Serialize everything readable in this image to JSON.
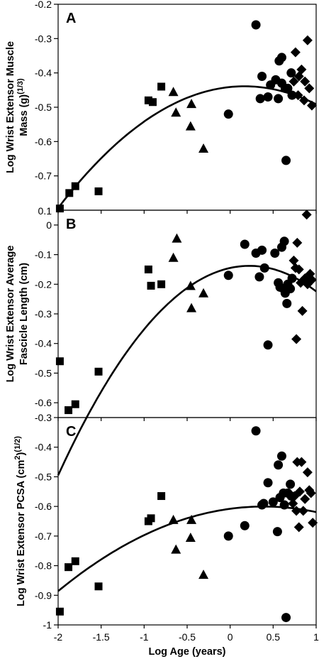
{
  "chart_data": [
    {
      "type": "scatter",
      "panel_label": "A",
      "ylabel_lines": [
        "Log Wrist Extensor Muscle",
        "Mass (g)"
      ],
      "ylabel_sup": "(1/3)",
      "ylim": [
        -0.8,
        -0.2
      ],
      "yticks": [
        -0.2,
        -0.3,
        -0.4,
        -0.5,
        -0.6,
        -0.7
      ],
      "ytick_labels": [
        "-0.2",
        "-0.3",
        "-0.4",
        "-0.5",
        "-0.6",
        "-0.7"
      ],
      "bottom_tick_label": "0.1",
      "xlim": [
        -2,
        1
      ],
      "grid": false,
      "legend": "none",
      "series": [
        {
          "marker": "square",
          "points": [
            [
              -1.98,
              -0.795
            ],
            [
              -1.87,
              -0.75
            ],
            [
              -1.8,
              -0.73
            ],
            [
              -1.53,
              -0.745
            ],
            [
              -0.95,
              -0.48
            ],
            [
              -0.9,
              -0.485
            ],
            [
              -0.8,
              -0.44
            ]
          ]
        },
        {
          "marker": "triangle",
          "points": [
            [
              -0.66,
              -0.455
            ],
            [
              -0.63,
              -0.515
            ],
            [
              -0.46,
              -0.555
            ],
            [
              -0.45,
              -0.49
            ],
            [
              -0.31,
              -0.62
            ]
          ]
        },
        {
          "marker": "circle",
          "points": [
            [
              -0.02,
              -0.52
            ],
            [
              0.3,
              -0.26
            ],
            [
              0.35,
              -0.475
            ],
            [
              0.37,
              -0.41
            ],
            [
              0.44,
              -0.47
            ],
            [
              0.47,
              -0.435
            ],
            [
              0.53,
              -0.42
            ],
            [
              0.56,
              -0.475
            ],
            [
              0.57,
              -0.365
            ],
            [
              0.6,
              -0.355
            ],
            [
              0.6,
              -0.43
            ],
            [
              0.64,
              -0.445
            ],
            [
              0.65,
              -0.655
            ],
            [
              0.67,
              -0.445
            ],
            [
              0.71,
              -0.4
            ],
            [
              0.72,
              -0.465
            ]
          ]
        },
        {
          "marker": "diamond",
          "points": [
            [
              0.74,
              -0.425
            ],
            [
              0.76,
              -0.34
            ],
            [
              0.79,
              -0.465
            ],
            [
              0.8,
              -0.41
            ],
            [
              0.83,
              -0.39
            ],
            [
              0.86,
              -0.48
            ],
            [
              0.87,
              -0.425
            ],
            [
              0.9,
              -0.305
            ],
            [
              0.92,
              -0.445
            ],
            [
              0.95,
              -0.495
            ]
          ]
        }
      ],
      "fit": {
        "type": "quadratic",
        "coef": [
          -0.4411,
          0.0252,
          -0.0755
        ]
      }
    },
    {
      "type": "scatter",
      "panel_label": "B",
      "ylabel_lines": [
        "Log Wrist Extensor Average",
        "Fascicle Length (cm)"
      ],
      "ylabel_sup": "",
      "ylim": [
        -0.65,
        0.05
      ],
      "yticks": [
        0,
        -0.1,
        -0.2,
        -0.3,
        -0.4,
        -0.5,
        -0.6
      ],
      "ytick_labels": [
        "0",
        "-0.1",
        "-0.2",
        "-0.3",
        "-0.4",
        "-0.5",
        "-0.6"
      ],
      "bottom_tick_label": "",
      "xlim": [
        -2,
        1
      ],
      "grid": false,
      "legend": "none",
      "series": [
        {
          "marker": "square",
          "points": [
            [
              -1.98,
              -0.46
            ],
            [
              -1.88,
              -0.625
            ],
            [
              -1.8,
              -0.605
            ],
            [
              -1.53,
              -0.495
            ],
            [
              -0.95,
              -0.15
            ],
            [
              -0.92,
              -0.205
            ],
            [
              -0.8,
              -0.2
            ]
          ]
        },
        {
          "marker": "triangle",
          "points": [
            [
              -0.66,
              -0.11
            ],
            [
              -0.62,
              -0.045
            ],
            [
              -0.46,
              -0.205
            ],
            [
              -0.45,
              -0.28
            ],
            [
              -0.31,
              -0.23
            ]
          ]
        },
        {
          "marker": "circle",
          "points": [
            [
              -0.02,
              -0.17
            ],
            [
              0.17,
              -0.065
            ],
            [
              0.3,
              -0.095
            ],
            [
              0.34,
              -0.175
            ],
            [
              0.37,
              -0.085
            ],
            [
              0.4,
              -0.145
            ],
            [
              0.44,
              -0.405
            ],
            [
              0.52,
              -0.095
            ],
            [
              0.56,
              -0.195
            ],
            [
              0.58,
              -0.21
            ],
            [
              0.6,
              -0.075
            ],
            [
              0.62,
              -0.215
            ],
            [
              0.63,
              -0.055
            ],
            [
              0.64,
              -0.23
            ],
            [
              0.66,
              -0.265
            ],
            [
              0.67,
              -0.2
            ],
            [
              0.7,
              -0.215
            ],
            [
              0.72,
              -0.18
            ]
          ]
        },
        {
          "marker": "diamond",
          "points": [
            [
              0.74,
              -0.12
            ],
            [
              0.76,
              -0.145
            ],
            [
              0.77,
              -0.385
            ],
            [
              0.78,
              -0.06
            ],
            [
              0.8,
              -0.15
            ],
            [
              0.82,
              -0.195
            ],
            [
              0.84,
              -0.29
            ],
            [
              0.87,
              -0.18
            ],
            [
              0.89,
              0.035
            ],
            [
              0.9,
              -0.2
            ],
            [
              0.93,
              -0.165
            ],
            [
              0.95,
              -0.185
            ]
          ]
        }
      ],
      "fit": {
        "type": "quadratic",
        "coef": [
          -0.145,
          0.064,
          -0.143
        ]
      }
    },
    {
      "type": "scatter",
      "panel_label": "C",
      "ylabel_lines": [
        "Log Wrist Extensor PCSA (cm"
      ],
      "ylabel_sup_parts": [
        "2",
        ")",
        "(1/2)"
      ],
      "ylim": [
        -1.0,
        -0.3
      ],
      "yticks": [
        -0.3,
        -0.4,
        -0.5,
        -0.6,
        -0.7,
        -0.8,
        -0.9,
        -1.0
      ],
      "ytick_labels": [
        "-0.3",
        "-0.4",
        "-0.5",
        "-0.6",
        "-0.7",
        "-0.8",
        "-0.9",
        "-1"
      ],
      "bottom_tick_label": "",
      "xlim": [
        -2,
        1
      ],
      "xticks": [
        -2,
        -1.5,
        -1,
        -0.5,
        0,
        0.5,
        1
      ],
      "xtick_labels": [
        "-2",
        "-1.5",
        "-1",
        "-0.5",
        "0",
        "0.5",
        "1"
      ],
      "xlabel": "Log Age (years)",
      "grid": false,
      "legend": "none",
      "series": [
        {
          "marker": "square",
          "points": [
            [
              -1.98,
              -0.955
            ],
            [
              -1.88,
              -0.805
            ],
            [
              -1.8,
              -0.785
            ],
            [
              -1.53,
              -0.87
            ],
            [
              -0.95,
              -0.65
            ],
            [
              -0.92,
              -0.64
            ],
            [
              -0.8,
              -0.565
            ]
          ]
        },
        {
          "marker": "triangle",
          "points": [
            [
              -0.66,
              -0.645
            ],
            [
              -0.63,
              -0.745
            ],
            [
              -0.46,
              -0.705
            ],
            [
              -0.45,
              -0.645
            ],
            [
              -0.31,
              -0.83
            ]
          ]
        },
        {
          "marker": "circle",
          "points": [
            [
              -0.02,
              -0.7
            ],
            [
              0.17,
              -0.665
            ],
            [
              0.3,
              -0.345
            ],
            [
              0.37,
              -0.595
            ],
            [
              0.39,
              -0.59
            ],
            [
              0.44,
              -0.52
            ],
            [
              0.5,
              -0.585
            ],
            [
              0.55,
              -0.685
            ],
            [
              0.56,
              -0.46
            ],
            [
              0.58,
              -0.57
            ],
            [
              0.6,
              -0.43
            ],
            [
              0.62,
              -0.555
            ],
            [
              0.63,
              -0.595
            ],
            [
              0.65,
              -0.975
            ],
            [
              0.67,
              -0.555
            ],
            [
              0.7,
              -0.525
            ],
            [
              0.71,
              -0.565
            ]
          ]
        },
        {
          "marker": "diamond",
          "points": [
            [
              0.73,
              -0.59
            ],
            [
              0.75,
              -0.565
            ],
            [
              0.77,
              -0.615
            ],
            [
              0.78,
              -0.45
            ],
            [
              0.8,
              -0.67
            ],
            [
              0.81,
              -0.55
            ],
            [
              0.83,
              -0.45
            ],
            [
              0.85,
              -0.615
            ],
            [
              0.87,
              -0.575
            ],
            [
              0.9,
              -0.485
            ],
            [
              0.92,
              -0.545
            ],
            [
              0.94,
              -0.555
            ],
            [
              0.96,
              -0.655
            ]
          ]
        }
      ],
      "fit": {
        "type": "quadratic",
        "coef": [
          -0.608,
          0.039,
          -0.05
        ]
      }
    }
  ]
}
